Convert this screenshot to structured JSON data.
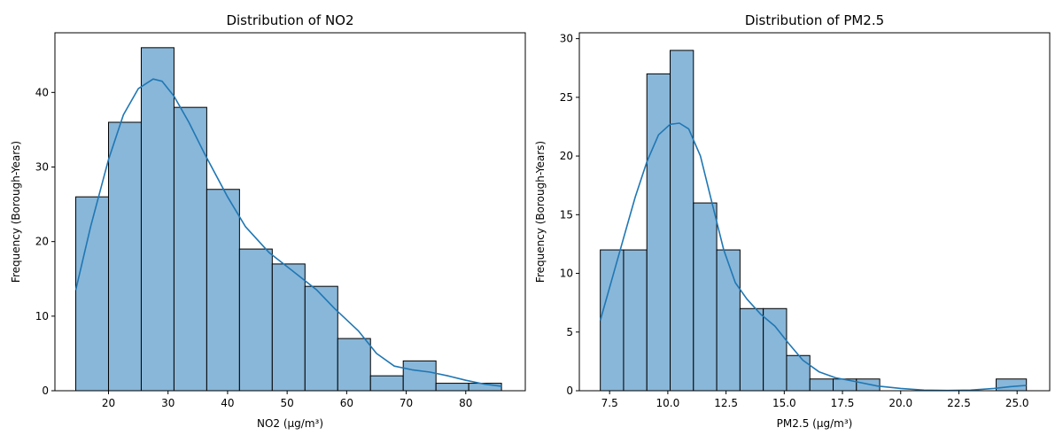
{
  "chart_data": [
    {
      "type": "bar",
      "title": "Distribution of NO2",
      "xlabel": "NO2 (µg/m³)",
      "ylabel": "Frequency (Borough-Years)",
      "xlim": [
        11.0,
        90.0
      ],
      "ylim": [
        0,
        48
      ],
      "xticks": [
        20,
        30,
        40,
        50,
        60,
        70,
        80
      ],
      "yticks": [
        0,
        10,
        20,
        30,
        40
      ],
      "bin_edges": [
        14.5,
        20.0,
        25.5,
        31.0,
        36.5,
        42.0,
        47.5,
        53.0,
        58.5,
        64.0,
        69.5,
        75.0,
        80.5,
        86.0
      ],
      "values": [
        26,
        36,
        46,
        38,
        27,
        19,
        17,
        14,
        7,
        2,
        4,
        1,
        1
      ],
      "kde": {
        "x": [
          14.5,
          17,
          20,
          22.5,
          25,
          27.5,
          29,
          31,
          33.5,
          36,
          40,
          43,
          47,
          51,
          55,
          58,
          62,
          65,
          68,
          71,
          74,
          77,
          80,
          83,
          86
        ],
        "y": [
          13.5,
          22,
          31,
          37,
          40.5,
          41.8,
          41.5,
          39.5,
          36,
          32,
          26,
          22,
          18.5,
          16,
          13.5,
          11,
          8,
          5,
          3.3,
          2.8,
          2.5,
          2,
          1.4,
          0.9,
          0.6
        ]
      },
      "grid": false,
      "legend": "none",
      "colors": {
        "bar": "#89b7d9",
        "edge": "#000000",
        "kde": "#1f77b4"
      }
    },
    {
      "type": "bar",
      "title": "Distribution of PM2.5",
      "xlabel": "PM2.5 (µg/m³)",
      "ylabel": "Frequency (Borough-Years)",
      "xlim": [
        6.2,
        26.4
      ],
      "ylim": [
        0,
        30.5
      ],
      "xticks": [
        7.5,
        10.0,
        12.5,
        15.0,
        17.5,
        20.0,
        22.5,
        25.0
      ],
      "xtick_labels": [
        "7.5",
        "10.0",
        "12.5",
        "15.0",
        "17.5",
        "20.0",
        "22.5",
        "25.0"
      ],
      "yticks": [
        0,
        5,
        10,
        15,
        20,
        25,
        30
      ],
      "bin_edges": [
        7.1,
        8.1,
        9.1,
        10.1,
        11.1,
        12.1,
        13.1,
        14.1,
        15.1,
        16.1,
        17.1,
        18.1,
        19.1,
        20.1,
        21.1,
        22.1,
        23.1,
        24.1,
        25.4
      ],
      "values": [
        12,
        12,
        27,
        29,
        16,
        12,
        7,
        7,
        3,
        1,
        1,
        1,
        0,
        0,
        0,
        0,
        0,
        1
      ],
      "kde": {
        "x": [
          7.1,
          7.6,
          8.1,
          8.6,
          9.1,
          9.6,
          10.1,
          10.5,
          10.9,
          11.4,
          11.9,
          12.4,
          12.9,
          13.4,
          14.0,
          14.6,
          15.2,
          15.8,
          16.5,
          17.2,
          18.0,
          19.0,
          20.0,
          21.0,
          22.0,
          23.0,
          24.0,
          24.7,
          25.4
        ],
        "y": [
          6,
          9.5,
          13,
          16.5,
          19.5,
          21.8,
          22.7,
          22.8,
          22.3,
          20,
          16,
          12,
          9.2,
          7.8,
          6.5,
          5.5,
          4,
          2.6,
          1.6,
          1.1,
          0.8,
          0.4,
          0.2,
          0.05,
          0.02,
          0.05,
          0.2,
          0.35,
          0.45
        ]
      },
      "grid": false,
      "legend": "none",
      "colors": {
        "bar": "#89b7d9",
        "edge": "#000000",
        "kde": "#1f77b4"
      }
    }
  ]
}
